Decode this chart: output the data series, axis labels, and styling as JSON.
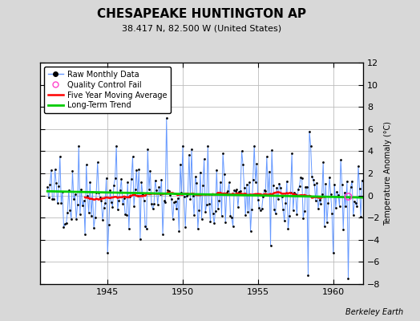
{
  "title": "CHESAPEAKE HUNTINGTON AP",
  "subtitle": "38.417 N, 82.500 W (United States)",
  "ylabel": "Temperature Anomaly (°C)",
  "credit": "Berkeley Earth",
  "ylim": [
    -8,
    12
  ],
  "yticks": [
    -8,
    -6,
    -4,
    -2,
    0,
    2,
    4,
    6,
    8,
    10,
    12
  ],
  "xlim": [
    1940.5,
    1962.0
  ],
  "xticks": [
    1945,
    1950,
    1955,
    1960
  ],
  "bg_color": "#d8d8d8",
  "plot_bg_color": "#ffffff",
  "raw_line_color": "#6699ff",
  "raw_dot_color": "#000000",
  "ma_color": "#ff0000",
  "trend_color": "#00cc00",
  "qc_color": "#ff44cc",
  "seed": 42,
  "n_months": 252,
  "start_year": 1941.0,
  "title_fontsize": 11,
  "subtitle_fontsize": 8,
  "tick_labelsize": 8,
  "legend_fontsize": 7,
  "ylabel_fontsize": 7,
  "credit_fontsize": 7
}
